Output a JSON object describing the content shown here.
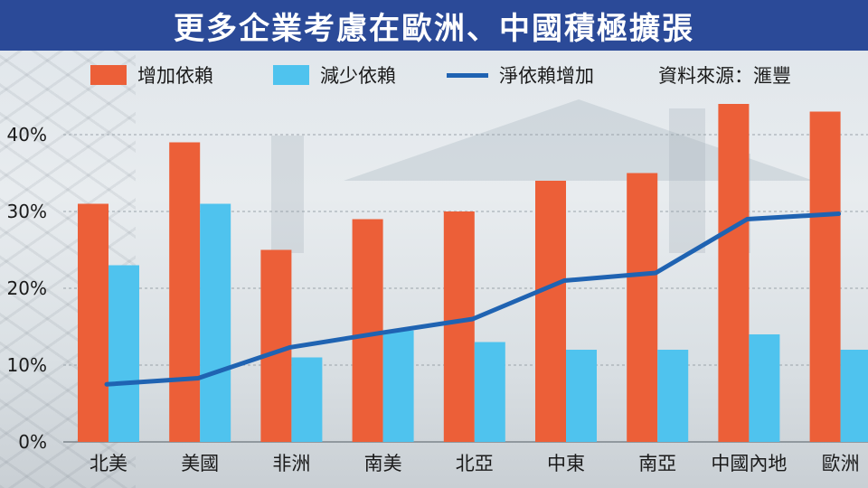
{
  "title": "更多企業考慮在歐洲、中國積極擴張",
  "legend": {
    "increase": "增加依賴",
    "decrease": "減少依賴",
    "net": "淨依賴增加",
    "source": "資料來源：滙豐"
  },
  "colors": {
    "title_bg": "#2b4a98",
    "increase": "#ec5f38",
    "decrease": "#4fc3ee",
    "net": "#1f63b2"
  },
  "chart_data": {
    "type": "bar",
    "categories": [
      "北美",
      "美國",
      "非洲",
      "南美",
      "北亞",
      "中東",
      "南亞",
      "中國內地",
      "歐洲"
    ],
    "series": [
      {
        "name": "增加依賴",
        "type": "bar",
        "values": [
          31,
          39,
          25,
          29,
          30,
          34,
          35,
          44,
          43
        ]
      },
      {
        "name": "減少依賴",
        "type": "bar",
        "values": [
          23,
          31,
          11,
          14.5,
          13,
          12,
          12,
          14,
          12
        ]
      },
      {
        "name": "淨依賴增加",
        "type": "line",
        "values": [
          7.5,
          8.3,
          12.3,
          14.2,
          16,
          21,
          22,
          29,
          29.7
        ]
      }
    ],
    "yticks": [
      "0%",
      "10%",
      "20%",
      "30%",
      "40%"
    ],
    "ylim": [
      0,
      45
    ],
    "grid": true,
    "legend_position": "top"
  }
}
